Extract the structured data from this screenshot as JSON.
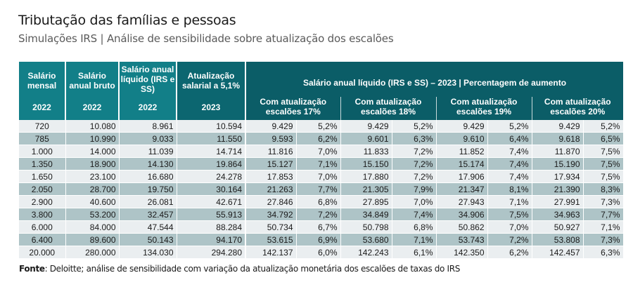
{
  "header": {
    "title": "Tributação das famílias e pessoas",
    "subtitle": "Simulações IRS | Análise de sensibilidade sobre atualização dos escalões"
  },
  "table": {
    "columns": [
      {
        "label": "Salário mensal",
        "year": "2022"
      },
      {
        "label": "Salário anual bruto",
        "year": "2022"
      },
      {
        "label": "Salário anual líquido (IRS e SS)",
        "year": "2022"
      },
      {
        "label": "Atualização salarial a 5,1%",
        "year": "2023"
      }
    ],
    "group_header": "Salário anual líquido (IRS e SS) – 2023 | Percentagem de aumento",
    "scenarios": [
      "Com atualização escalões 17%",
      "Com atualização escalões 18%",
      "Com atualização escalões 19%",
      "Com atualização escalões 20%"
    ],
    "rows": [
      [
        "720",
        "10.080",
        "8.961",
        "10.594",
        "9.429",
        "5,2%",
        "9.429",
        "5,2%",
        "9.429",
        "5,2%",
        "9.429",
        "5,2%"
      ],
      [
        "785",
        "10.990",
        "9.033",
        "11.550",
        "9.593",
        "6,2%",
        "9.601",
        "6,3%",
        "9.610",
        "6,4%",
        "9.618",
        "6,5%"
      ],
      [
        "1.000",
        "14.000",
        "11.039",
        "14.714",
        "11.816",
        "7,0%",
        "11.833",
        "7,2%",
        "11.852",
        "7,4%",
        "11.870",
        "7,5%"
      ],
      [
        "1.350",
        "18.900",
        "14.130",
        "19.864",
        "15.127",
        "7,1%",
        "15.150",
        "7,2%",
        "15.174",
        "7,4%",
        "15.190",
        "7,5%"
      ],
      [
        "1.650",
        "23.100",
        "16.680",
        "24.278",
        "17.853",
        "7,0%",
        "17.880",
        "7,2%",
        "17.906",
        "7,4%",
        "17.934",
        "7,5%"
      ],
      [
        "2.050",
        "28.700",
        "19.750",
        "30.164",
        "21.263",
        "7,7%",
        "21.305",
        "7,9%",
        "21.347",
        "8,1%",
        "21.390",
        "8,3%"
      ],
      [
        "2.900",
        "40.600",
        "26.081",
        "42.671",
        "27.846",
        "6,8%",
        "27.895",
        "7,0%",
        "27.943",
        "7,1%",
        "27.991",
        "7,3%"
      ],
      [
        "3.800",
        "53.200",
        "32.457",
        "55.913",
        "34.792",
        "7,2%",
        "34.849",
        "7,4%",
        "34.906",
        "7,5%",
        "34.963",
        "7,7%"
      ],
      [
        "6.000",
        "84.000",
        "47.544",
        "88.284",
        "50.734",
        "6,7%",
        "50.798",
        "6,8%",
        "50.862",
        "7,0%",
        "50.927",
        "7,1%"
      ],
      [
        "6.400",
        "89.600",
        "50.143",
        "94.170",
        "53.615",
        "6,9%",
        "53.680",
        "7,1%",
        "53.743",
        "7,2%",
        "53.808",
        "7,3%"
      ],
      [
        "20.000",
        "280.000",
        "134.030",
        "294.280",
        "142.137",
        "6,0%",
        "142.243",
        "6,1%",
        "142.350",
        "6,2%",
        "142.457",
        "6,3%"
      ]
    ]
  },
  "footer": {
    "label": "Fonte",
    "text": ": Deloitte; análise de sensibilidade com variação da atualização monetária dos escalões de taxas do IRS"
  },
  "colors": {
    "header_light": "#127f88",
    "header_dark": "#0c6670",
    "row_light": "#eaeef0",
    "row_dark": "#aec4c7"
  }
}
